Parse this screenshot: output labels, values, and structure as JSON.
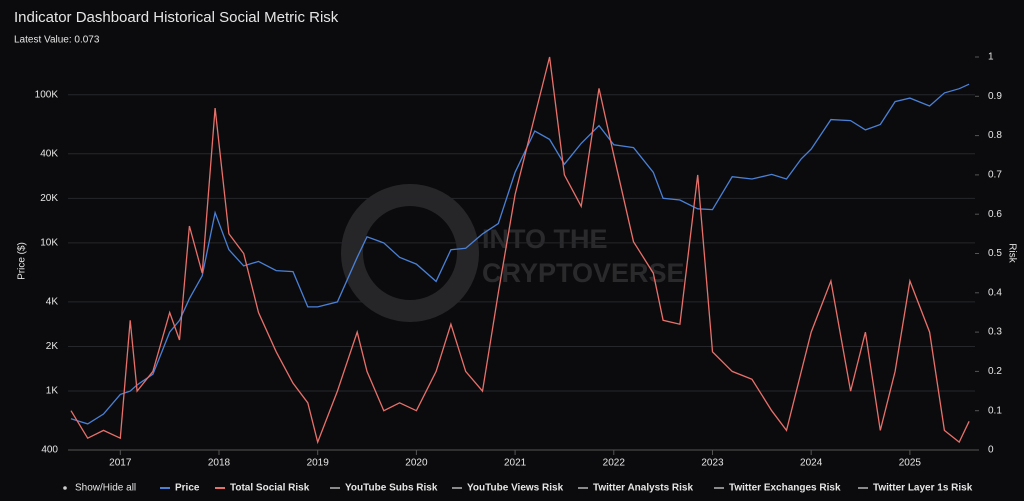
{
  "chart_data": {
    "type": "line",
    "title": "Indicator Dashboard Historical Social Metric Risk",
    "subtitle": "Latest Value: 0.073",
    "watermark": [
      "INTO THE",
      "CRYPTOVERSE"
    ],
    "ylabel": "Price ($)",
    "y2label": "Risk",
    "show_hide_label": "Show/Hide all",
    "log_y": true,
    "grid": true,
    "xlim": [
      2016.47,
      2025.66
    ],
    "xticks": [
      2017,
      2018,
      2019,
      2020,
      2021,
      2022,
      2023,
      2024,
      2025
    ],
    "ylim": [
      400,
      180000
    ],
    "yticks": [
      400,
      {
        "value": 1000,
        "label": "1K"
      },
      {
        "value": 2000,
        "label": "2K"
      },
      {
        "value": 4000,
        "label": "4K"
      },
      {
        "value": 10000,
        "label": "10K"
      },
      {
        "value": 20000,
        "label": "20K"
      },
      {
        "value": 40000,
        "label": "40K"
      },
      {
        "value": 100000,
        "label": "100K"
      }
    ],
    "y2lim": [
      0,
      1
    ],
    "y2ticks": [
      0,
      0.1,
      0.2,
      0.3,
      0.4,
      0.5,
      0.6,
      0.7,
      0.8,
      0.9,
      1
    ],
    "x": [
      2016.5,
      2016.67,
      2016.83,
      2017.0,
      2017.1,
      2017.17,
      2017.33,
      2017.5,
      2017.6,
      2017.7,
      2017.83,
      2017.96,
      2018.1,
      2018.25,
      2018.4,
      2018.58,
      2018.75,
      2018.9,
      2019.0,
      2019.2,
      2019.4,
      2019.5,
      2019.67,
      2019.83,
      2020.0,
      2020.2,
      2020.35,
      2020.5,
      2020.67,
      2020.83,
      2021.0,
      2021.2,
      2021.35,
      2021.5,
      2021.67,
      2021.85,
      2022.0,
      2022.2,
      2022.4,
      2022.5,
      2022.67,
      2022.85,
      2023.0,
      2023.2,
      2023.4,
      2023.6,
      2023.75,
      2023.9,
      2024.0,
      2024.2,
      2024.4,
      2024.55,
      2024.7,
      2024.85,
      2025.0,
      2025.2,
      2025.35,
      2025.5,
      2025.6
    ],
    "series": [
      {
        "name": "Price",
        "color": "#4a80d6",
        "visible": true,
        "values": [
          650,
          600,
          700,
          950,
          1000,
          1100,
          1300,
          2500,
          3000,
          4200,
          6000,
          16000,
          9000,
          7000,
          7500,
          6500,
          6400,
          3700,
          3700,
          4000,
          8000,
          11000,
          10000,
          8000,
          7200,
          5500,
          9000,
          9200,
          11500,
          13500,
          30000,
          57000,
          50000,
          34000,
          47000,
          62000,
          46000,
          44000,
          30000,
          20000,
          19500,
          17000,
          16800,
          28000,
          27000,
          29000,
          27000,
          37000,
          43000,
          68000,
          67000,
          58000,
          63000,
          90000,
          95000,
          84000,
          103000,
          110000,
          118000
        ]
      },
      {
        "name": "Total Social Risk",
        "color": "#e8706a",
        "visible": true,
        "axis": "y2",
        "values": [
          0.1,
          0.03,
          0.05,
          0.03,
          0.33,
          0.15,
          0.2,
          0.35,
          0.28,
          0.57,
          0.45,
          0.87,
          0.55,
          0.5,
          0.35,
          0.25,
          0.17,
          0.12,
          0.02,
          0.15,
          0.3,
          0.2,
          0.1,
          0.12,
          0.1,
          0.2,
          0.32,
          0.2,
          0.15,
          0.4,
          0.65,
          0.85,
          1.0,
          0.7,
          0.62,
          0.92,
          0.75,
          0.53,
          0.45,
          0.33,
          0.32,
          0.7,
          0.25,
          0.2,
          0.18,
          0.1,
          0.05,
          0.2,
          0.3,
          0.43,
          0.15,
          0.3,
          0.05,
          0.2,
          0.43,
          0.3,
          0.05,
          0.02,
          0.073
        ]
      },
      {
        "name": "YouTube Subs Risk",
        "color": "#8a8a8a",
        "visible": false
      },
      {
        "name": "YouTube Views Risk",
        "color": "#8a8a8a",
        "visible": false
      },
      {
        "name": "Twitter Analysts Risk",
        "color": "#8a8a8a",
        "visible": false
      },
      {
        "name": "Twitter Exchanges Risk",
        "color": "#8a8a8a",
        "visible": false
      },
      {
        "name": "Twitter Layer 1s Risk",
        "color": "#8a8a8a",
        "visible": false
      }
    ]
  }
}
